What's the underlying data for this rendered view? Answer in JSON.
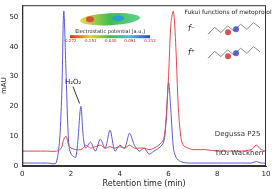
{
  "chart_data": {
    "type": "line",
    "x_label": "Retention time (min)",
    "y_label": "mAU",
    "x": [
      0,
      0.5,
      1,
      1.4,
      1.6,
      1.7,
      1.8,
      1.9,
      2.0,
      2.2,
      2.4,
      2.5,
      2.6,
      2.8,
      3.0,
      3.2,
      3.4,
      3.6,
      3.8,
      4.0,
      4.2,
      4.4,
      4.6,
      4.8,
      5.0,
      5.2,
      5.4,
      5.6,
      5.8,
      5.9,
      6.0,
      6.1,
      6.2,
      6.3,
      6.4,
      6.5,
      6.6,
      6.8,
      7.0,
      7.5,
      8.0,
      8.5,
      9.0,
      9.4,
      9.6,
      9.8,
      10
    ],
    "series": [
      {
        "name": "Degussa P25",
        "color": "#e8474f",
        "values": [
          5,
          5,
          5,
          5,
          6,
          9,
          10,
          7,
          6,
          5.5,
          5.5,
          6,
          7,
          6,
          6.5,
          7,
          6,
          6.5,
          6,
          6.5,
          6,
          7,
          6,
          6,
          6,
          5.5,
          6,
          7,
          9,
          16,
          30,
          48,
          52,
          40,
          20,
          10,
          7,
          6,
          5.5,
          5.5,
          5,
          5,
          5,
          5.5,
          7,
          5.5,
          5
        ]
      },
      {
        "name": "TiO₂ Wackherr",
        "color": "#5a5ad8",
        "values": [
          1,
          1,
          1,
          1.2,
          20,
          52,
          30,
          8,
          4,
          3,
          20,
          10,
          6,
          8,
          5,
          9,
          6,
          12,
          5,
          7,
          6,
          11,
          7,
          5,
          6,
          4,
          5,
          6,
          8,
          15,
          28,
          18,
          6,
          3,
          2,
          1.5,
          1.2,
          1,
          1,
          1,
          1,
          1,
          1,
          1,
          1.5,
          1,
          1
        ]
      }
    ],
    "xlim": [
      0,
      10
    ],
    "xticks": [
      0,
      2,
      4,
      6,
      8,
      10
    ],
    "ylim": [
      0,
      54
    ],
    "yticks": [
      0,
      10,
      20,
      30,
      40,
      50
    ],
    "grid": false,
    "annotations": [
      "H₂O₂",
      "Fukui functions of metoprolol",
      "f⁻",
      "f⁺"
    ],
    "colorbar": {
      "title": "Electrostatic potential [a.u.]",
      "ticks": [
        -0.272,
        -0.151,
        {
          "value": -0.03,
          "label": "-0.030"
        },
        0.091,
        0.212
      ]
    }
  }
}
